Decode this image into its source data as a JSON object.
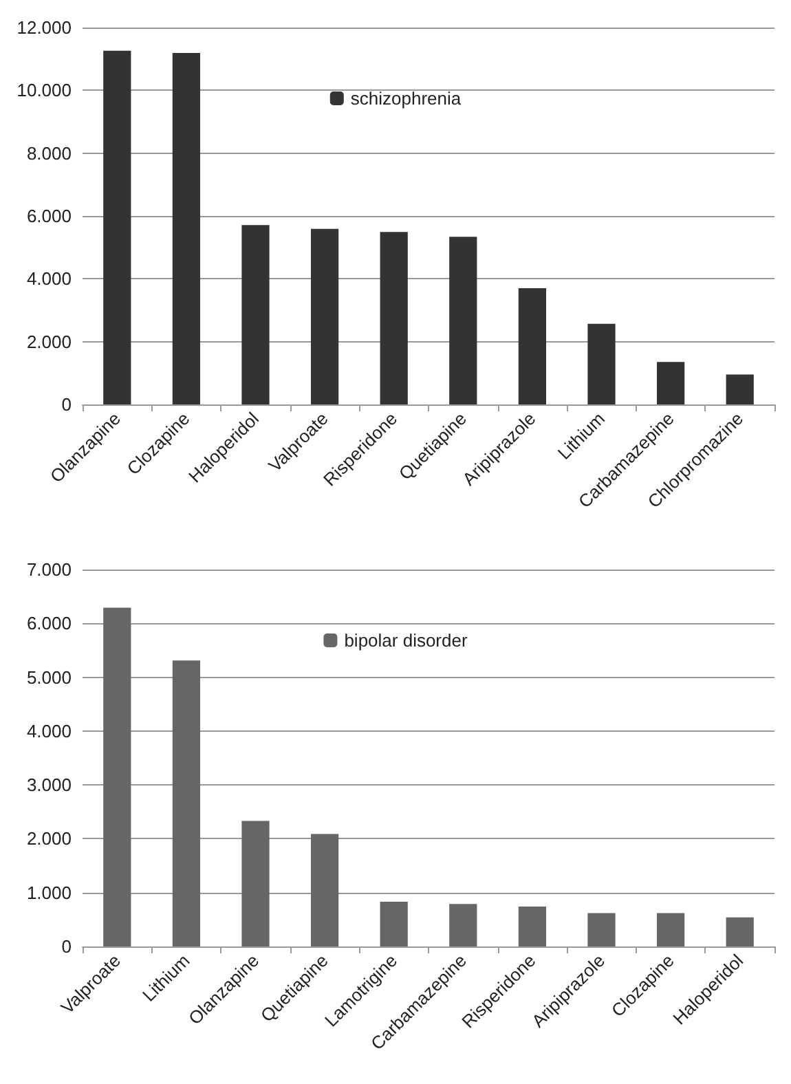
{
  "chart_data": [
    {
      "type": "bar",
      "categories": [
        "Olanzapine",
        "Clozapine",
        "Haloperidol",
        "Valproate",
        "Risperidone",
        "Quetiapine",
        "Aripiprazole",
        "Lithium",
        "Carbamazepine",
        "Chlorpromazine"
      ],
      "series": [
        {
          "name": "schizophrenia",
          "color": "#333333",
          "values": [
            11260,
            11190,
            5710,
            5590,
            5490,
            5340,
            3700,
            2570,
            1350,
            950
          ]
        }
      ],
      "ylim": [
        0,
        12000
      ],
      "yticks": [
        {
          "value": 0,
          "label": "0"
        },
        {
          "value": 2000,
          "label": "2.000"
        },
        {
          "value": 4000,
          "label": "4.000"
        },
        {
          "value": 6000,
          "label": "6.000"
        },
        {
          "value": 8000,
          "label": "8.000"
        },
        {
          "value": 10000,
          "label": "10.000"
        },
        {
          "value": 12000,
          "label": "12.000"
        }
      ],
      "grid": "y",
      "legend": "top"
    },
    {
      "type": "bar",
      "categories": [
        "Valproate",
        "Lithium",
        "Olanzapine",
        "Quetiapine",
        "Lamotrigine",
        "Carbamazepine",
        "Risperidone",
        "Aripiprazole",
        "Clozapine",
        "Haloperidol"
      ],
      "series": [
        {
          "name": "bipolar disorder",
          "color": "#666666",
          "values": [
            6290,
            5310,
            2330,
            2090,
            830,
            790,
            740,
            620,
            620,
            540
          ]
        }
      ],
      "ylim": [
        0,
        7000
      ],
      "yticks": [
        {
          "value": 0,
          "label": "0"
        },
        {
          "value": 1000,
          "label": "1.000"
        },
        {
          "value": 2000,
          "label": "2.000"
        },
        {
          "value": 3000,
          "label": "3.000"
        },
        {
          "value": 4000,
          "label": "4.000"
        },
        {
          "value": 5000,
          "label": "5.000"
        },
        {
          "value": 6000,
          "label": "6.000"
        },
        {
          "value": 7000,
          "label": "7.000"
        }
      ],
      "grid": "y",
      "legend": "top"
    }
  ]
}
